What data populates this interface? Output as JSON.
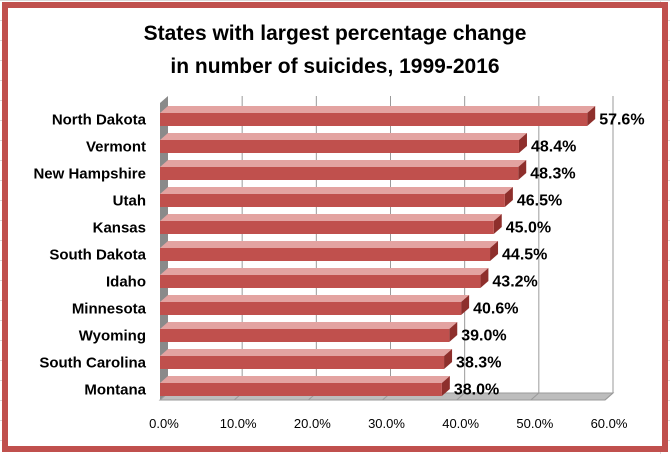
{
  "colors": {
    "frame": "#c0504d",
    "bar_face": "#c0504d",
    "bar_top": "#e3a3a1",
    "bar_end": "#8e2f2c",
    "wall": "#c8c8c8",
    "wall_side": "#8a8a8a",
    "floor": "#bdbdbd"
  },
  "chart_data": {
    "type": "bar",
    "orientation": "horizontal",
    "style": "3d",
    "title_line1": "States with largest percentage change",
    "title_line2": "in number of suicides, 1999-2016",
    "categories": [
      "North Dakota",
      "Vermont",
      "New Hampshire",
      "Utah",
      "Kansas",
      "South Dakota",
      "Idaho",
      "Minnesota",
      "Wyoming",
      "South Carolina",
      "Montana"
    ],
    "values": [
      57.6,
      48.4,
      48.3,
      46.5,
      45.0,
      44.5,
      43.2,
      40.6,
      39.0,
      38.3,
      38.0
    ],
    "value_labels": [
      "57.6%",
      "48.4%",
      "48.3%",
      "46.5%",
      "45.0%",
      "44.5%",
      "43.2%",
      "40.6%",
      "39.0%",
      "38.3%",
      "38.0%"
    ],
    "x_ticks": [
      0,
      10,
      20,
      30,
      40,
      50,
      60
    ],
    "x_tick_labels": [
      "0.0%",
      "10.0%",
      "20.0%",
      "30.0%",
      "40.0%",
      "50.0%",
      "60.0%"
    ],
    "xlim": [
      0,
      60
    ],
    "grid": true,
    "legend": "none"
  }
}
